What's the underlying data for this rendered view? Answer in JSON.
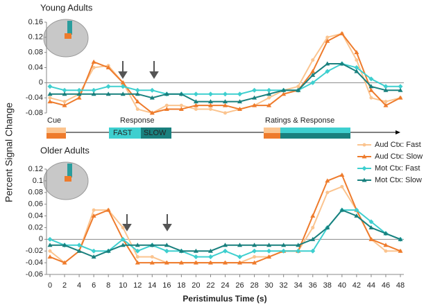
{
  "chart_data": [
    {
      "type": "line",
      "title": "Young Adults",
      "ylabel": "Percent Signal Change",
      "annotations": [
        "Cue",
        "Response",
        "FAST",
        "SLOW",
        "Ratings & Response"
      ],
      "x": [
        0,
        2,
        4,
        6,
        8,
        10,
        12,
        14,
        16,
        18,
        20,
        22,
        24,
        26,
        28,
        30,
        32,
        34,
        36,
        38,
        40,
        42,
        44,
        46,
        48
      ],
      "ylim": [
        -0.08,
        0.16
      ],
      "yticks": [
        -0.08,
        -0.04,
        0,
        0.04,
        0.08,
        0.12,
        0.16
      ],
      "series": [
        {
          "name": "Aud Ctx: Fast",
          "color": "#fbc48f",
          "marker": "circle",
          "values": [
            -0.04,
            -0.05,
            -0.03,
            0.04,
            0.045,
            0,
            -0.07,
            -0.08,
            -0.06,
            -0.06,
            -0.07,
            -0.07,
            -0.08,
            -0.07,
            -0.06,
            -0.04,
            -0.02,
            -0.01,
            0.06,
            0.12,
            0.13,
            0.06,
            -0.04,
            -0.05,
            -0.04
          ]
        },
        {
          "name": "Aud Ctx: Slow",
          "color": "#ee7b2c",
          "marker": "triangle",
          "values": [
            -0.05,
            -0.06,
            -0.04,
            0.055,
            0.04,
            0,
            -0.05,
            -0.08,
            -0.07,
            -0.07,
            -0.06,
            -0.06,
            -0.06,
            -0.07,
            -0.06,
            -0.06,
            -0.03,
            -0.02,
            0.03,
            0.11,
            0.13,
            0.08,
            -0.02,
            -0.06,
            -0.04
          ]
        },
        {
          "name": "Mot Ctx: Fast",
          "color": "#3ecfcf",
          "marker": "diamond",
          "values": [
            -0.01,
            -0.02,
            -0.02,
            -0.02,
            -0.01,
            -0.01,
            -0.02,
            -0.02,
            -0.03,
            -0.03,
            -0.03,
            -0.03,
            -0.03,
            -0.03,
            -0.02,
            -0.02,
            -0.02,
            -0.02,
            0,
            0.03,
            0.05,
            0.04,
            0.01,
            -0.01,
            -0.01
          ]
        },
        {
          "name": "Mot Ctx: Slow",
          "color": "#19807e",
          "marker": "triangle",
          "values": [
            -0.03,
            -0.03,
            -0.03,
            -0.03,
            -0.03,
            -0.03,
            -0.03,
            -0.04,
            -0.03,
            -0.03,
            -0.05,
            -0.05,
            -0.05,
            -0.05,
            -0.04,
            -0.03,
            -0.02,
            -0.02,
            0.02,
            0.05,
            0.05,
            0.03,
            -0.01,
            -0.02,
            -0.02
          ]
        }
      ]
    },
    {
      "type": "line",
      "title": "Older Adults",
      "xlabel": "Peristimulus Time (s)",
      "x": [
        0,
        2,
        4,
        6,
        8,
        10,
        12,
        14,
        16,
        18,
        20,
        22,
        24,
        26,
        28,
        30,
        32,
        34,
        36,
        38,
        40,
        42,
        44,
        46,
        48
      ],
      "xlim": [
        0,
        48
      ],
      "xticks": [
        0,
        2,
        4,
        6,
        8,
        10,
        12,
        14,
        16,
        18,
        20,
        22,
        24,
        26,
        28,
        30,
        32,
        34,
        36,
        38,
        40,
        42,
        44,
        46,
        48
      ],
      "ylim": [
        -0.06,
        0.12
      ],
      "yticks": [
        -0.06,
        -0.04,
        -0.02,
        0,
        0.02,
        0.04,
        0.06,
        0.08,
        0.1,
        0.12
      ],
      "legend": "right",
      "series": [
        {
          "name": "Aud Ctx: Fast",
          "color": "#fbc48f",
          "marker": "circle",
          "values": [
            -0.02,
            -0.04,
            -0.02,
            0.05,
            0.05,
            0.02,
            -0.03,
            -0.03,
            -0.04,
            -0.04,
            -0.04,
            -0.04,
            -0.04,
            -0.04,
            -0.03,
            -0.03,
            -0.02,
            -0.02,
            0.02,
            0.08,
            0.09,
            0.05,
            0,
            -0.02,
            -0.02
          ]
        },
        {
          "name": "Aud Ctx: Slow",
          "color": "#ee7b2c",
          "marker": "triangle",
          "values": [
            -0.03,
            -0.04,
            -0.02,
            0.04,
            0.05,
            0,
            -0.04,
            -0.04,
            -0.04,
            -0.04,
            -0.04,
            -0.04,
            -0.04,
            -0.04,
            -0.04,
            -0.03,
            -0.02,
            -0.02,
            0.04,
            0.1,
            0.11,
            0.05,
            0,
            -0.01,
            -0.02
          ]
        },
        {
          "name": "Mot Ctx: Fast",
          "color": "#3ecfcf",
          "marker": "diamond",
          "values": [
            0,
            -0.01,
            -0.01,
            -0.02,
            -0.02,
            0,
            -0.02,
            -0.01,
            -0.02,
            -0.02,
            -0.03,
            -0.03,
            -0.02,
            -0.03,
            -0.02,
            -0.02,
            -0.02,
            -0.02,
            -0.02,
            0.02,
            0.05,
            0.05,
            0.03,
            0.01,
            0
          ]
        },
        {
          "name": "Mot Ctx: Slow",
          "color": "#19807e",
          "marker": "triangle",
          "values": [
            -0.01,
            -0.01,
            -0.02,
            -0.03,
            -0.02,
            -0.01,
            -0.01,
            -0.01,
            -0.01,
            -0.02,
            -0.02,
            -0.02,
            -0.01,
            -0.01,
            -0.01,
            -0.01,
            -0.01,
            -0.01,
            0,
            0.02,
            0.05,
            0.04,
            0.02,
            0.01,
            0
          ]
        }
      ]
    }
  ]
}
